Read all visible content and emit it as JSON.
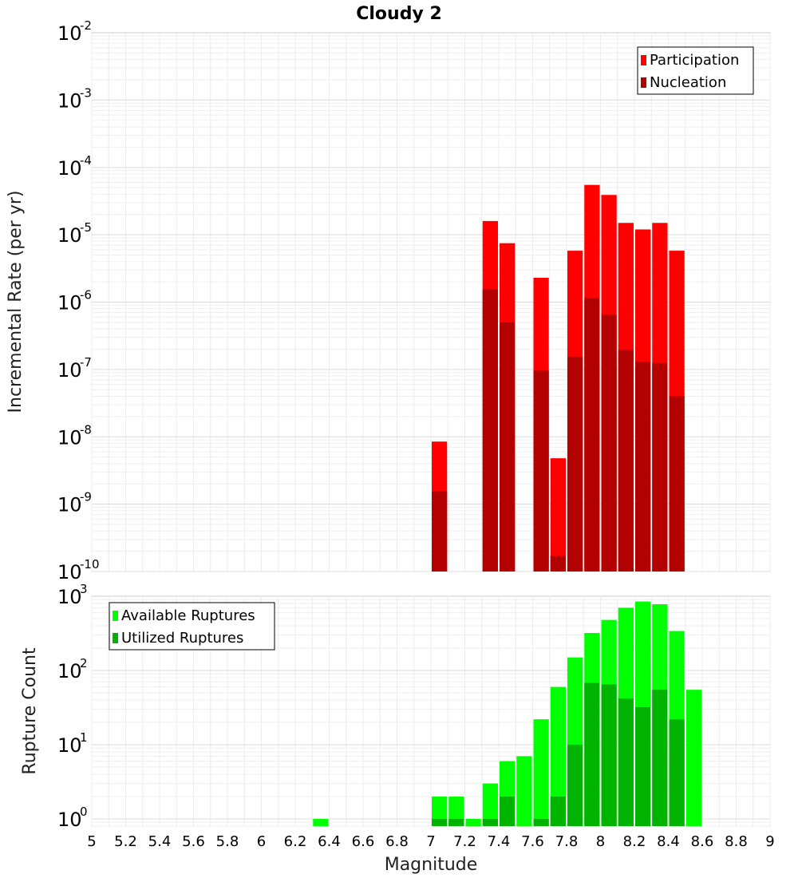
{
  "chart_data": [
    {
      "type": "bar",
      "title": "Cloudy 2",
      "xlabel": "Magnitude",
      "ylabel": "Incremental Rate (per yr)",
      "xlim": [
        5,
        9
      ],
      "ylim": [
        1e-10,
        0.01
      ],
      "yscale": "log",
      "yticks": [
        {
          "base": "10",
          "exp": "-10"
        },
        {
          "base": "10",
          "exp": "-9"
        },
        {
          "base": "10",
          "exp": "-8"
        },
        {
          "base": "10",
          "exp": "-7"
        },
        {
          "base": "10",
          "exp": "-6"
        },
        {
          "base": "10",
          "exp": "-5"
        },
        {
          "base": "10",
          "exp": "-4"
        },
        {
          "base": "10",
          "exp": "-3"
        },
        {
          "base": "10",
          "exp": "-2"
        }
      ],
      "grid": true,
      "legend": "top-right",
      "colors": {
        "Participation": "#ff0000",
        "Nucleation": "#b30000"
      },
      "x": [
        7.05,
        7.35,
        7.45,
        7.65,
        7.75,
        7.85,
        7.95,
        8.05,
        8.15,
        8.25,
        8.35,
        8.45
      ],
      "series": [
        {
          "name": "Participation",
          "values": [
            8.5e-09,
            1.6e-05,
            7.5e-06,
            2.3e-06,
            4.8e-09,
            5.8e-06,
            5.5e-05,
            3.9e-05,
            1.5e-05,
            1.2e-05,
            1.5e-05,
            5.8e-06
          ]
        },
        {
          "name": "Nucleation",
          "values": [
            1.55e-09,
            1.55e-06,
            5e-07,
            9.6e-08,
            1.7e-10,
            1.55e-07,
            1.15e-06,
            6.5e-07,
            1.95e-07,
            1.3e-07,
            1.25e-07,
            4e-08
          ]
        }
      ]
    },
    {
      "type": "bar",
      "xlabel": "Magnitude",
      "ylabel": "Rupture Count",
      "xlim": [
        5,
        9
      ],
      "ylim": [
        0.8,
        1000
      ],
      "yscale": "log",
      "yticks": [
        {
          "base": "10",
          "exp": "0"
        },
        {
          "base": "10",
          "exp": "1"
        },
        {
          "base": "10",
          "exp": "2"
        },
        {
          "base": "10",
          "exp": "3"
        }
      ],
      "xticks": [
        "5",
        "5.2",
        "5.4",
        "5.6",
        "5.8",
        "6",
        "6.2",
        "6.4",
        "6.6",
        "6.8",
        "7",
        "7.2",
        "7.4",
        "7.6",
        "7.8",
        "8",
        "8.2",
        "8.4",
        "8.6",
        "8.8",
        "9"
      ],
      "grid": true,
      "legend": "top-left",
      "colors": {
        "Available Ruptures": "#00ff00",
        "Utilized Ruptures": "#00b300"
      },
      "x": [
        6.35,
        7.05,
        7.15,
        7.25,
        7.35,
        7.45,
        7.55,
        7.65,
        7.75,
        7.85,
        7.95,
        8.05,
        8.15,
        8.25,
        8.35,
        8.45,
        8.55
      ],
      "series": [
        {
          "name": "Available Ruptures",
          "values": [
            1,
            2,
            2,
            1,
            3,
            6,
            7,
            22,
            60,
            150,
            320,
            480,
            700,
            850,
            780,
            340,
            55
          ]
        },
        {
          "name": "Utilized Ruptures",
          "values": [
            0,
            1,
            1,
            0,
            1,
            2,
            0,
            1,
            2,
            10,
            68,
            65,
            42,
            32,
            55,
            22,
            0
          ]
        }
      ]
    }
  ]
}
